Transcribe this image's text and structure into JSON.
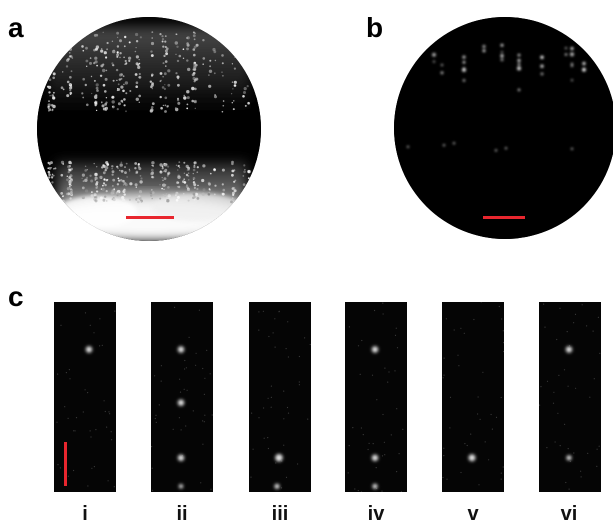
{
  "figure": {
    "panel_labels": {
      "a": "a",
      "b": "b",
      "c": "c"
    },
    "strip_labels": [
      "i",
      "ii",
      "iii",
      "iv",
      "v",
      "vi"
    ],
    "colors": {
      "background": "#ffffff",
      "image_field": "#000000",
      "scale_bar": "#e8262e"
    }
  }
}
